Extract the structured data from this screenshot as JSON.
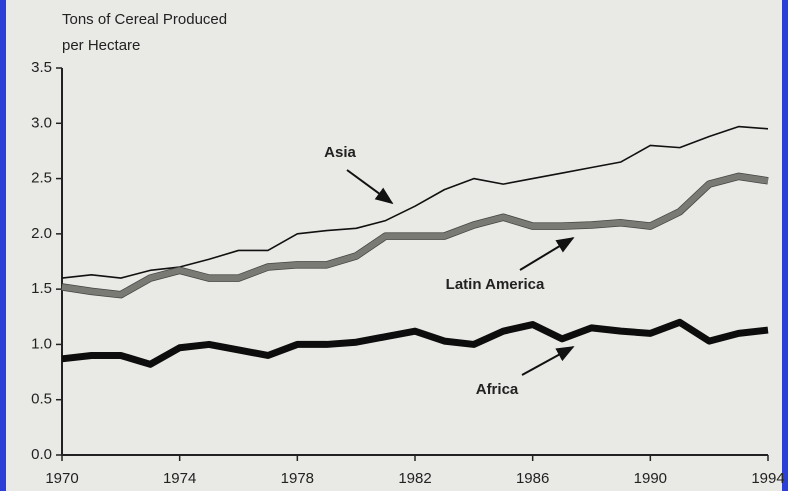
{
  "chart_data": {
    "type": "line",
    "y_label": [
      "Tons of Cereal Produced",
      "per Hectare"
    ],
    "annotations": [
      "Asia",
      "Latin America",
      "Africa"
    ],
    "x": [
      1970,
      1971,
      1972,
      1973,
      1974,
      1975,
      1976,
      1977,
      1978,
      1979,
      1980,
      1981,
      1982,
      1983,
      1984,
      1985,
      1986,
      1987,
      1988,
      1989,
      1990,
      1991,
      1992,
      1993,
      1994
    ],
    "xlim": [
      1970,
      1994
    ],
    "xticks": [
      1970,
      1974,
      1978,
      1982,
      1986,
      1990,
      1994
    ],
    "ylim": [
      0,
      3.5
    ],
    "yticks": [
      {
        "value": 0,
        "label": "0.0"
      },
      0.5,
      {
        "value": 1,
        "label": "1.0"
      },
      1.5,
      {
        "value": 2,
        "label": "2.0"
      },
      2.5,
      {
        "value": 3,
        "label": "3.0"
      },
      3.5
    ],
    "series": [
      {
        "name": "Asia",
        "color": "#111111",
        "width": 1.6,
        "values": [
          1.6,
          1.63,
          1.6,
          1.67,
          1.7,
          1.77,
          1.85,
          1.85,
          2.0,
          2.03,
          2.05,
          2.12,
          2.25,
          2.4,
          2.5,
          2.45,
          2.5,
          2.55,
          2.6,
          2.65,
          2.8,
          2.78,
          2.88,
          2.97,
          2.95
        ]
      },
      {
        "name": "Latin America",
        "color": "#7a7a74",
        "width": 6,
        "values": [
          1.52,
          1.48,
          1.45,
          1.6,
          1.67,
          1.6,
          1.6,
          1.7,
          1.72,
          1.72,
          1.8,
          1.98,
          1.98,
          1.98,
          2.08,
          2.15,
          2.07,
          2.07,
          2.08,
          2.1,
          2.07,
          2.2,
          2.45,
          2.52,
          2.48
        ]
      },
      {
        "name": "Africa",
        "color": "#0d0d0d",
        "width": 7,
        "values": [
          0.87,
          0.9,
          0.9,
          0.82,
          0.97,
          1.0,
          0.95,
          0.9,
          1.0,
          1.0,
          1.02,
          1.07,
          1.12,
          1.03,
          1.0,
          1.12,
          1.18,
          1.05,
          1.15,
          1.12,
          1.1,
          1.2,
          1.03,
          1.1,
          1.13
        ]
      }
    ]
  }
}
